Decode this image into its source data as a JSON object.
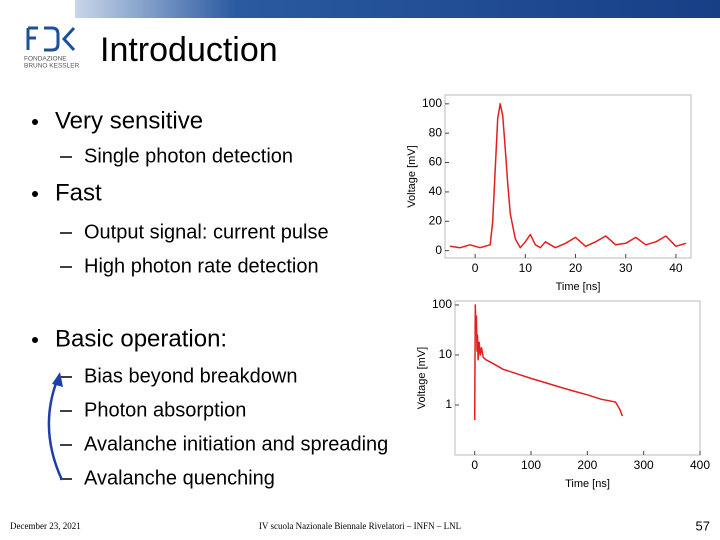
{
  "header": {
    "title": "Introduction",
    "logo": [
      "FONDAZIONE",
      "BRUNO KESSLER"
    ]
  },
  "bullets": [
    {
      "text": "Very sensitive",
      "sub": [
        "Single photon detection"
      ]
    },
    {
      "text": "Fast",
      "sub": [
        "Output signal: current pulse",
        "High photon rate detection"
      ]
    },
    {
      "text": "Basic operation:",
      "sub": [
        "Bias beyond breakdown",
        "Photon absorption",
        "Avalanche initiation and spreading",
        "Avalanche quenching"
      ]
    }
  ],
  "footer": {
    "date": "December 23, 2021",
    "event": "IV scuola Nazionale Biennale Rivelatori – INFN – LNL",
    "page": "57"
  },
  "chart_data": [
    {
      "type": "line",
      "xlabel": "Time [ns]",
      "ylabel": "Voltage [mV]",
      "color": "#e41e1e",
      "x": [
        -5,
        -3,
        -1,
        1,
        3,
        3.5,
        4,
        4.5,
        5,
        5.5,
        6,
        6.5,
        7,
        8,
        9,
        10,
        11,
        12,
        13,
        14,
        16,
        18,
        20,
        22,
        24,
        26,
        28,
        30,
        32,
        34,
        36,
        38,
        40,
        42
      ],
      "values": [
        3,
        2,
        4,
        2,
        4,
        20,
        55,
        90,
        100,
        92,
        70,
        45,
        25,
        8,
        2,
        6,
        11,
        4,
        2,
        6,
        2,
        5,
        9,
        3,
        6,
        10,
        4,
        5,
        9,
        4,
        6,
        10,
        3,
        5
      ],
      "xlim": [
        -6,
        43
      ],
      "ylim": [
        -5,
        106
      ],
      "xticks": [
        0,
        10,
        20,
        30,
        40
      ],
      "yticks": [
        0,
        20,
        40,
        60,
        80,
        100
      ]
    },
    {
      "type": "line",
      "xlabel": "Time [ns]",
      "ylabel": "Voltage [mV]",
      "color": "#e41e1e",
      "log_y": true,
      "x": [
        0,
        1,
        2,
        3,
        4,
        5,
        6,
        8,
        10,
        12,
        15,
        20,
        30,
        50,
        75,
        100,
        125,
        150,
        175,
        200,
        225,
        250,
        258,
        262
      ],
      "values": [
        0.5,
        100,
        30,
        60,
        12,
        25,
        8,
        18,
        10,
        14,
        9,
        8,
        7,
        5.2,
        4.2,
        3.4,
        2.8,
        2.3,
        1.9,
        1.6,
        1.3,
        1.15,
        0.8,
        0.6
      ],
      "xlim": [
        -35,
        400
      ],
      "ylim": [
        0.1,
        120
      ],
      "xticks": [
        0,
        100,
        200,
        300,
        400
      ],
      "yticks": [
        1,
        10,
        100
      ]
    }
  ]
}
